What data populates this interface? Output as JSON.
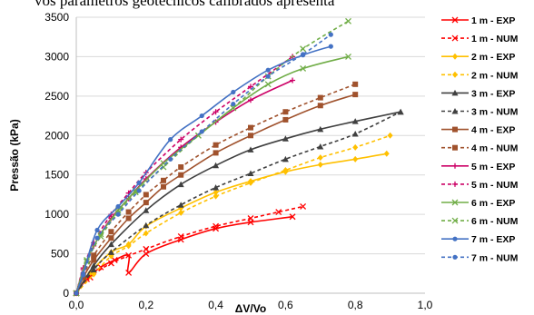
{
  "caption_fragment": "vos parâmetros geotécnicos calibrados apresenta",
  "chart_data": {
    "type": "line",
    "xlabel": "ΔV/Vo",
    "ylabel": "Pressão (kPa)",
    "xlim": [
      0,
      1.0
    ],
    "ylim": [
      0,
      3500
    ],
    "xticks": [
      "0,0",
      "0,2",
      "0,4",
      "0,6",
      "0,8",
      "1,0"
    ],
    "yticks": [
      "0",
      "500",
      "1000",
      "1500",
      "2000",
      "2500",
      "3000",
      "3500"
    ],
    "xtick_values": [
      0,
      0.2,
      0.4,
      0.6,
      0.8,
      1.0
    ],
    "ytick_values": [
      0,
      500,
      1000,
      1500,
      2000,
      2500,
      3000,
      3500
    ],
    "grid": "horizontal",
    "legend_position": "right",
    "series": [
      {
        "name": "1 m - EXP",
        "color": "#ff0000",
        "dash": "solid",
        "marker": "x",
        "x": [
          0,
          0.03,
          0.07,
          0.11,
          0.15,
          0.15,
          0.2,
          0.3,
          0.4,
          0.5,
          0.62
        ],
        "y": [
          0,
          180,
          330,
          420,
          480,
          260,
          500,
          680,
          820,
          900,
          970
        ]
      },
      {
        "name": "1 m - NUM",
        "color": "#ff0000",
        "dash": "dash",
        "marker": "x",
        "x": [
          0,
          0.04,
          0.1,
          0.2,
          0.3,
          0.4,
          0.5,
          0.58,
          0.65
        ],
        "y": [
          0,
          200,
          380,
          560,
          720,
          850,
          950,
          1030,
          1100
        ]
      },
      {
        "name": "2 m - EXP",
        "color": "#ffc000",
        "dash": "solid",
        "marker": "diamond",
        "x": [
          0,
          0.04,
          0.1,
          0.15,
          0.2,
          0.3,
          0.4,
          0.5,
          0.6,
          0.7,
          0.8,
          0.89
        ],
        "y": [
          0,
          260,
          520,
          620,
          850,
          1080,
          1280,
          1420,
          1540,
          1630,
          1700,
          1770
        ]
      },
      {
        "name": "2 m - NUM",
        "color": "#ffc000",
        "dash": "dash",
        "marker": "diamond",
        "x": [
          0,
          0.05,
          0.1,
          0.15,
          0.2,
          0.3,
          0.4,
          0.5,
          0.6,
          0.7,
          0.8,
          0.9
        ],
        "y": [
          0,
          240,
          470,
          600,
          760,
          1020,
          1230,
          1400,
          1560,
          1720,
          1850,
          2000
        ]
      },
      {
        "name": "3 m - EXP",
        "color": "#404040",
        "dash": "solid",
        "marker": "triangle",
        "x": [
          0,
          0.05,
          0.1,
          0.2,
          0.3,
          0.4,
          0.5,
          0.6,
          0.7,
          0.8,
          0.93
        ],
        "y": [
          0,
          350,
          620,
          1050,
          1380,
          1620,
          1820,
          1960,
          2080,
          2180,
          2300
        ]
      },
      {
        "name": "3 m - NUM",
        "color": "#404040",
        "dash": "dash",
        "marker": "triangle",
        "x": [
          0,
          0.05,
          0.1,
          0.2,
          0.3,
          0.4,
          0.5,
          0.6,
          0.7,
          0.8,
          0.93
        ],
        "y": [
          0,
          300,
          520,
          860,
          1120,
          1340,
          1520,
          1700,
          1860,
          2020,
          2300
        ]
      },
      {
        "name": "4 m - EXP",
        "color": "#a0522d",
        "dash": "solid",
        "marker": "square",
        "x": [
          0,
          0.02,
          0.05,
          0.1,
          0.15,
          0.2,
          0.25,
          0.3,
          0.4,
          0.5,
          0.6,
          0.7,
          0.8
        ],
        "y": [
          0,
          200,
          420,
          700,
          950,
          1150,
          1350,
          1500,
          1780,
          2000,
          2200,
          2380,
          2520
        ]
      },
      {
        "name": "4 m - NUM",
        "color": "#a0522d",
        "dash": "dash",
        "marker": "square",
        "x": [
          0,
          0.02,
          0.05,
          0.1,
          0.15,
          0.2,
          0.25,
          0.3,
          0.4,
          0.5,
          0.6,
          0.7,
          0.8
        ],
        "y": [
          0,
          230,
          480,
          780,
          1030,
          1250,
          1430,
          1600,
          1880,
          2100,
          2300,
          2480,
          2650
        ]
      },
      {
        "name": "5 m - EXP",
        "color": "#cc0066",
        "dash": "solid",
        "marker": "plus",
        "x": [
          0,
          0.02,
          0.05,
          0.1,
          0.15,
          0.2,
          0.3,
          0.4,
          0.5,
          0.62
        ],
        "y": [
          0,
          300,
          600,
          950,
          1200,
          1450,
          1850,
          2170,
          2450,
          2700
        ]
      },
      {
        "name": "5 m - NUM",
        "color": "#cc0066",
        "dash": "dash",
        "marker": "plus",
        "x": [
          0,
          0.02,
          0.05,
          0.1,
          0.15,
          0.2,
          0.3,
          0.4,
          0.5,
          0.62
        ],
        "y": [
          0,
          320,
          640,
          1000,
          1270,
          1530,
          1950,
          2300,
          2620,
          3000
        ]
      },
      {
        "name": "6 m - EXP",
        "color": "#70ad47",
        "dash": "solid",
        "marker": "x",
        "x": [
          0,
          0.03,
          0.07,
          0.12,
          0.17,
          0.25,
          0.35,
          0.45,
          0.55,
          0.65,
          0.78
        ],
        "y": [
          0,
          420,
          750,
          1050,
          1300,
          1650,
          2000,
          2350,
          2650,
          2850,
          3000
        ]
      },
      {
        "name": "6 m - NUM",
        "color": "#70ad47",
        "dash": "dash",
        "marker": "x",
        "x": [
          0,
          0.03,
          0.07,
          0.12,
          0.17,
          0.25,
          0.35,
          0.45,
          0.55,
          0.65,
          0.78
        ],
        "y": [
          0,
          400,
          720,
          1020,
          1280,
          1600,
          2000,
          2350,
          2750,
          3100,
          3450
        ]
      },
      {
        "name": "7 m - EXP",
        "color": "#4472c4",
        "dash": "solid",
        "marker": "circle",
        "x": [
          0,
          0.02,
          0.06,
          0.12,
          0.18,
          0.27,
          0.36,
          0.45,
          0.55,
          0.65,
          0.73
        ],
        "y": [
          0,
          250,
          800,
          1100,
          1400,
          1950,
          2250,
          2550,
          2830,
          3020,
          3130
        ]
      },
      {
        "name": "7 m - NUM",
        "color": "#4472c4",
        "dash": "dash",
        "marker": "circle",
        "x": [
          0,
          0.02,
          0.06,
          0.12,
          0.18,
          0.27,
          0.36,
          0.45,
          0.55,
          0.65,
          0.73
        ],
        "y": [
          0,
          230,
          700,
          1000,
          1300,
          1700,
          2050,
          2400,
          2750,
          3030,
          3280
        ]
      }
    ]
  }
}
